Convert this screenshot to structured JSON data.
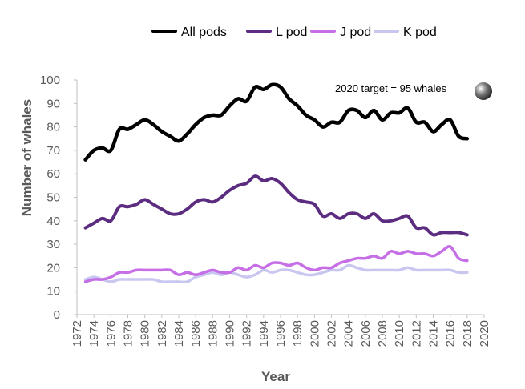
{
  "chart_data": {
    "type": "line",
    "title": "",
    "xlabel": "Year",
    "ylabel": "Number of whales",
    "xlim": [
      1972,
      2020
    ],
    "ylim": [
      0,
      100
    ],
    "x_ticks": [
      "1972",
      "1974",
      "1976",
      "1978",
      "1980",
      "1982",
      "1984",
      "1986",
      "1988",
      "1990",
      "1992",
      "1994",
      "1996",
      "1998",
      "2000",
      "2002",
      "2004",
      "2006",
      "2008",
      "2010",
      "2012",
      "2014",
      "2016",
      "2018",
      "2020"
    ],
    "y_ticks": [
      "0",
      "10",
      "20",
      "30",
      "40",
      "50",
      "60",
      "70",
      "80",
      "90",
      "100"
    ],
    "legend_position": "top",
    "grid": false,
    "annotation": "2020 target =  95 whales",
    "x": [
      1973,
      1974,
      1975,
      1976,
      1977,
      1978,
      1979,
      1980,
      1981,
      1982,
      1983,
      1984,
      1985,
      1986,
      1987,
      1988,
      1989,
      1990,
      1991,
      1992,
      1993,
      1994,
      1995,
      1996,
      1997,
      1998,
      1999,
      2000,
      2001,
      2002,
      2003,
      2004,
      2005,
      2006,
      2007,
      2008,
      2009,
      2010,
      2011,
      2012,
      2013,
      2014,
      2015,
      2016,
      2017,
      2018
    ],
    "series": [
      {
        "name": "All pods",
        "color": "#000000",
        "values": [
          66,
          70,
          71,
          70,
          79,
          79,
          81,
          83,
          81,
          78,
          76,
          74,
          77,
          81,
          84,
          85,
          85,
          89,
          92,
          91,
          97,
          96,
          98,
          97,
          92,
          89,
          85,
          83,
          80,
          82,
          82,
          87,
          87,
          84,
          87,
          83,
          86,
          86,
          88,
          82,
          82,
          78,
          81,
          83,
          76,
          75
        ]
      },
      {
        "name": "L pod",
        "color": "#5b2c80",
        "values": [
          37,
          39,
          41,
          40,
          46,
          46,
          47,
          49,
          47,
          45,
          43,
          43,
          45,
          48,
          49,
          48,
          50,
          53,
          55,
          56,
          59,
          57,
          58,
          56,
          52,
          49,
          48,
          47,
          42,
          43,
          41,
          43,
          43,
          41,
          43,
          40,
          40,
          41,
          42,
          37,
          37,
          34,
          35,
          35,
          35,
          34
        ]
      },
      {
        "name": "J pod",
        "color": "#c56ee6",
        "values": [
          14,
          15,
          15,
          16,
          18,
          18,
          19,
          19,
          19,
          19,
          19,
          17,
          18,
          17,
          18,
          19,
          18,
          18,
          20,
          19,
          21,
          20,
          22,
          22,
          21,
          22,
          20,
          19,
          20,
          20,
          22,
          23,
          24,
          24,
          25,
          24,
          27,
          26,
          27,
          26,
          26,
          25,
          27,
          29,
          24,
          23
        ]
      },
      {
        "name": "K pod",
        "color": "#c9c7f0",
        "values": [
          15,
          16,
          15,
          14,
          15,
          15,
          15,
          15,
          15,
          14,
          14,
          14,
          14,
          16,
          17,
          18,
          17,
          18,
          17,
          16,
          17,
          19,
          18,
          19,
          19,
          18,
          17,
          17,
          18,
          19,
          19,
          21,
          20,
          19,
          19,
          19,
          19,
          19,
          20,
          19,
          19,
          19,
          19,
          19,
          18,
          18
        ]
      }
    ]
  }
}
